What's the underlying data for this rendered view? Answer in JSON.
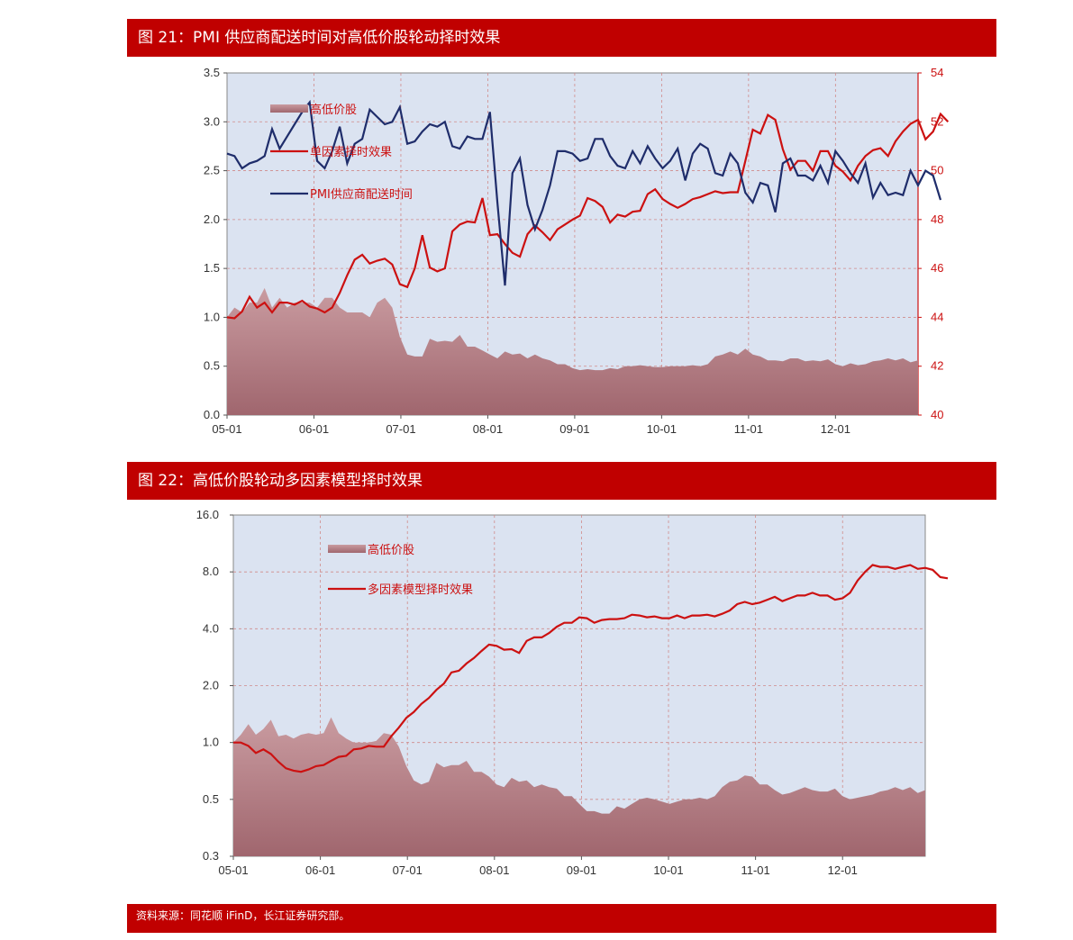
{
  "figure1": {
    "title": "图 21：PMI 供应商配送时间对高低价股轮动择时效果"
  },
  "figure2": {
    "title": "图 22：高低价股轮动多因素模型择时效果"
  },
  "source": "资料来源：同花顺 iFinD，长江证券研究部。",
  "colors": {
    "banner": "#c00000",
    "plot_bg": "#dbe3f1",
    "area": "#a0666e",
    "red_line": "#cc1111",
    "blue_line": "#1f2d6b"
  },
  "chart_data": [
    {
      "type": "line",
      "title": "",
      "x_ticks": [
        "05-01",
        "06-01",
        "07-01",
        "08-01",
        "09-01",
        "10-01",
        "11-01",
        "12-01"
      ],
      "y_left": {
        "ylim": [
          0.0,
          3.5
        ],
        "ticks": [
          "0.0",
          "0.5",
          "1.0",
          "1.5",
          "2.0",
          "2.5",
          "3.0",
          "3.5"
        ]
      },
      "y_right": {
        "ylim": [
          40,
          54
        ],
        "ticks": [
          "40",
          "42",
          "44",
          "46",
          "48",
          "50",
          "52",
          "54"
        ]
      },
      "legend_position": "top-left",
      "grid": true,
      "series": [
        {
          "name": "高低价股",
          "kind": "area",
          "axis": "left",
          "values": [
            1.0,
            1.1,
            1.05,
            1.15,
            1.15,
            1.3,
            1.1,
            1.2,
            1.1,
            1.15,
            1.15,
            1.15,
            1.1,
            1.2,
            1.2,
            1.1,
            1.05,
            1.05,
            1.05,
            1.0,
            1.15,
            1.2,
            1.1,
            0.8,
            0.62,
            0.6,
            0.6,
            0.78,
            0.75,
            0.76,
            0.75,
            0.82,
            0.7,
            0.7,
            0.66,
            0.62,
            0.58,
            0.65,
            0.62,
            0.63,
            0.58,
            0.62,
            0.58,
            0.56,
            0.52,
            0.52,
            0.48,
            0.46,
            0.47,
            0.46,
            0.46,
            0.48,
            0.47,
            0.5,
            0.5,
            0.51,
            0.5,
            0.49,
            0.49,
            0.5,
            0.5,
            0.5,
            0.51,
            0.5,
            0.52,
            0.6,
            0.62,
            0.65,
            0.62,
            0.68,
            0.62,
            0.6,
            0.56,
            0.56,
            0.55,
            0.58,
            0.58,
            0.55,
            0.56,
            0.55,
            0.57,
            0.52,
            0.5,
            0.53,
            0.51,
            0.52,
            0.55,
            0.56,
            0.58,
            0.56,
            0.58,
            0.54,
            0.56
          ]
        },
        {
          "name": "单因素择时效果",
          "kind": "line",
          "axis": "left",
          "values": [
            1.0,
            0.99,
            1.06,
            1.21,
            1.1,
            1.15,
            1.05,
            1.15,
            1.15,
            1.13,
            1.17,
            1.11,
            1.09,
            1.05,
            1.1,
            1.25,
            1.43,
            1.59,
            1.64,
            1.55,
            1.58,
            1.6,
            1.54,
            1.34,
            1.31,
            1.5,
            1.84,
            1.51,
            1.47,
            1.5,
            1.88,
            1.95,
            1.98,
            1.97,
            2.22,
            1.84,
            1.85,
            1.75,
            1.66,
            1.62,
            1.85,
            1.94,
            1.87,
            1.79,
            1.9,
            1.95,
            2.0,
            2.04,
            2.22,
            2.19,
            2.13,
            1.97,
            2.05,
            2.03,
            2.08,
            2.09,
            2.26,
            2.31,
            2.21,
            2.16,
            2.12,
            2.16,
            2.21,
            2.23,
            2.26,
            2.29,
            2.27,
            2.28,
            2.28,
            2.6,
            2.92,
            2.88,
            3.07,
            3.02,
            2.72,
            2.51,
            2.6,
            2.6,
            2.5,
            2.7,
            2.7,
            2.55,
            2.49,
            2.4,
            2.55,
            2.65,
            2.71,
            2.73,
            2.65,
            2.8,
            2.9,
            2.98,
            3.02,
            2.82,
            2.9,
            3.08,
            3.0
          ]
        },
        {
          "name": "PMI供应商配送时间",
          "kind": "line",
          "axis": "right",
          "values": [
            50.7,
            50.6,
            50.1,
            50.3,
            50.4,
            50.6,
            51.7,
            50.9,
            51.4,
            51.9,
            52.4,
            52.8,
            50.4,
            50.1,
            50.8,
            51.8,
            50.3,
            51.1,
            51.3,
            52.5,
            52.2,
            51.9,
            52.0,
            52.6,
            51.1,
            51.2,
            51.6,
            51.9,
            51.8,
            52.0,
            51.0,
            50.9,
            51.4,
            51.3,
            51.3,
            52.4,
            48.7,
            45.3,
            49.9,
            50.5,
            48.6,
            47.6,
            48.4,
            49.4,
            50.8,
            50.8,
            50.7,
            50.4,
            50.5,
            51.3,
            51.3,
            50.6,
            50.2,
            50.1,
            50.8,
            50.3,
            51.0,
            50.5,
            50.1,
            50.4,
            50.9,
            49.6,
            50.7,
            51.1,
            50.9,
            49.9,
            49.8,
            50.7,
            50.3,
            49.1,
            48.7,
            49.5,
            49.4,
            48.3,
            50.3,
            50.5,
            49.8,
            49.8,
            49.6,
            50.2,
            49.5,
            50.8,
            50.4,
            49.9,
            49.5,
            50.3,
            48.9,
            49.5,
            49.0,
            49.1,
            49.0,
            50.0,
            49.4,
            50.0,
            49.8,
            48.8
          ]
        }
      ]
    },
    {
      "type": "line",
      "title": "",
      "y_scale": "log",
      "x_ticks": [
        "05-01",
        "06-01",
        "07-01",
        "08-01",
        "09-01",
        "10-01",
        "11-01",
        "12-01"
      ],
      "y_left": {
        "ylim": [
          0.3,
          16.0
        ],
        "ticks": [
          "16.0",
          "8.0",
          "4.0",
          "2.0",
          "1.0",
          "0.5",
          "0.3"
        ]
      },
      "legend_position": "top-left",
      "grid": true,
      "series": [
        {
          "name": "高低价股",
          "kind": "area",
          "values": [
            1.0,
            1.1,
            1.25,
            1.1,
            1.18,
            1.32,
            1.08,
            1.1,
            1.05,
            1.1,
            1.12,
            1.1,
            1.12,
            1.36,
            1.12,
            1.05,
            1.0,
            1.0,
            1.0,
            1.02,
            1.12,
            1.1,
            0.95,
            0.75,
            0.63,
            0.6,
            0.62,
            0.78,
            0.74,
            0.76,
            0.76,
            0.8,
            0.7,
            0.7,
            0.66,
            0.6,
            0.58,
            0.65,
            0.62,
            0.63,
            0.58,
            0.6,
            0.58,
            0.57,
            0.52,
            0.52,
            0.48,
            0.45,
            0.45,
            0.44,
            0.44,
            0.47,
            0.46,
            0.48,
            0.5,
            0.51,
            0.5,
            0.49,
            0.48,
            0.49,
            0.5,
            0.5,
            0.51,
            0.5,
            0.52,
            0.58,
            0.62,
            0.63,
            0.67,
            0.66,
            0.6,
            0.6,
            0.56,
            0.53,
            0.54,
            0.56,
            0.58,
            0.56,
            0.55,
            0.55,
            0.57,
            0.52,
            0.5,
            0.51,
            0.52,
            0.53,
            0.55,
            0.56,
            0.58,
            0.56,
            0.58,
            0.54,
            0.56
          ]
        },
        {
          "name": "多因素模型择时效果",
          "kind": "line",
          "values": [
            1.0,
            1.0,
            0.96,
            0.88,
            0.92,
            0.87,
            0.79,
            0.73,
            0.71,
            0.7,
            0.72,
            0.75,
            0.76,
            0.8,
            0.84,
            0.85,
            0.92,
            0.93,
            0.96,
            0.95,
            0.95,
            1.08,
            1.2,
            1.35,
            1.45,
            1.6,
            1.72,
            1.9,
            2.05,
            2.35,
            2.4,
            2.62,
            2.8,
            3.05,
            3.3,
            3.25,
            3.1,
            3.12,
            2.98,
            3.45,
            3.6,
            3.6,
            3.8,
            4.1,
            4.3,
            4.3,
            4.6,
            4.55,
            4.3,
            4.45,
            4.5,
            4.5,
            4.55,
            4.75,
            4.7,
            4.6,
            4.65,
            4.55,
            4.55,
            4.7,
            4.55,
            4.7,
            4.7,
            4.75,
            4.65,
            4.8,
            5.0,
            5.4,
            5.55,
            5.4,
            5.5,
            5.7,
            5.9,
            5.6,
            5.8,
            6.0,
            6.0,
            6.2,
            6.0,
            6.0,
            5.7,
            5.8,
            6.2,
            7.2,
            8.0,
            8.7,
            8.5,
            8.5,
            8.3,
            8.5,
            8.7,
            8.3,
            8.4,
            8.2,
            7.5,
            7.4
          ]
        }
      ]
    }
  ],
  "legend1": {
    "area_label": "高低价股",
    "red_label": "单因素择时效果",
    "blue_label": "PMI供应商配送时间"
  },
  "legend2": {
    "area_label": "高低价股",
    "red_label": "多因素模型择时效果"
  }
}
